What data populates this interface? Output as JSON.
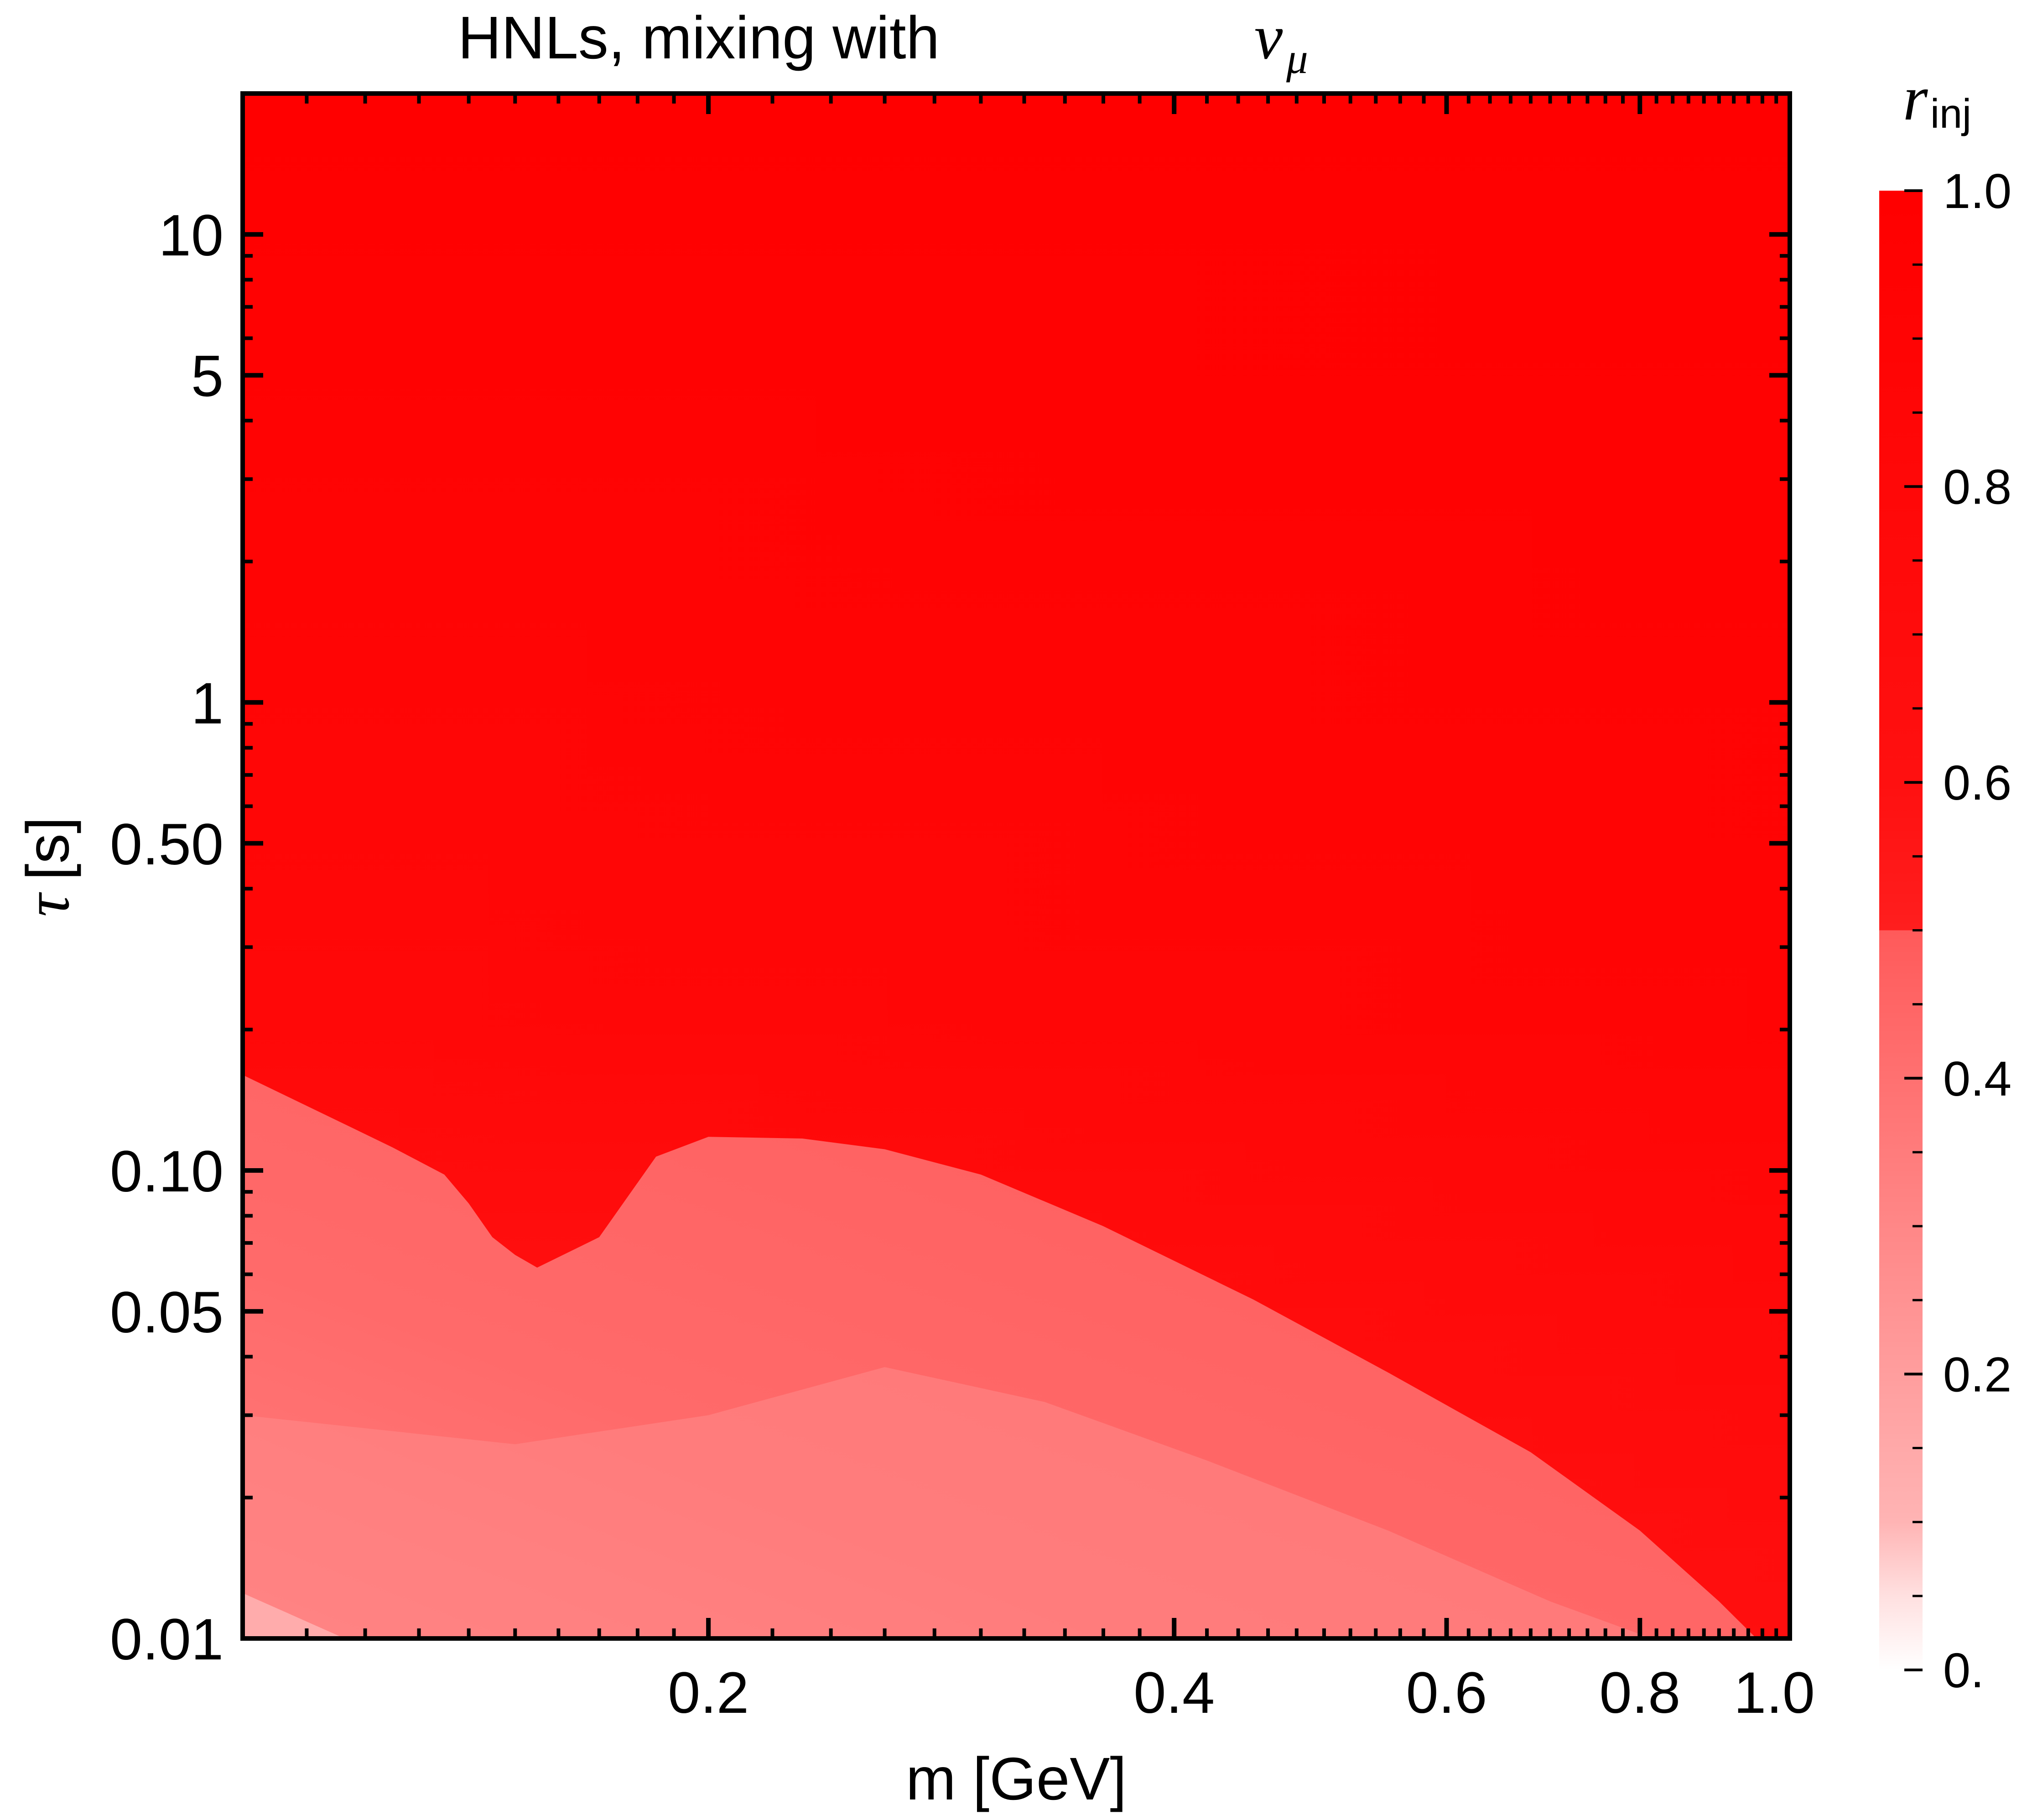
{
  "chart_data": {
    "type": "heatmap",
    "title": "HNLs, mixing with",
    "title_math": "ν",
    "title_math_sub": "μ",
    "xlabel": "m [GeV]",
    "ylabel_symbol": "τ",
    "ylabel_unit": "[s]",
    "x_scale": "log",
    "y_scale": "log",
    "xlim": [
      0.1,
      1.0
    ],
    "ylim": [
      0.01,
      20
    ],
    "x_ticks": [
      {
        "value": 0.2,
        "label": "0.2"
      },
      {
        "value": 0.4,
        "label": "0.4"
      },
      {
        "value": 0.6,
        "label": "0.6"
      },
      {
        "value": 0.8,
        "label": "0.8"
      },
      {
        "value": 1.0,
        "label": "1.0"
      }
    ],
    "y_ticks": [
      {
        "value": 0.01,
        "label": "0.01"
      },
      {
        "value": 0.05,
        "label": "0.05"
      },
      {
        "value": 0.1,
        "label": "0.10"
      },
      {
        "value": 0.5,
        "label": "0.50"
      },
      {
        "value": 1,
        "label": "1"
      },
      {
        "value": 5,
        "label": "5"
      },
      {
        "value": 10,
        "label": "10"
      }
    ],
    "colorbar": {
      "label": "r",
      "label_sub": "inj",
      "range": [
        0,
        1
      ],
      "ticks": [
        {
          "value": 0,
          "label": "0."
        },
        {
          "value": 0.2,
          "label": "0.2"
        },
        {
          "value": 0.4,
          "label": "0.4"
        },
        {
          "value": 0.6,
          "label": "0.6"
        },
        {
          "value": 0.8,
          "label": "0.8"
        },
        {
          "value": 1.0,
          "label": "1.0"
        }
      ],
      "low_color": "#ffffff",
      "high_color": "#ff0000"
    },
    "contour_r_0_5": {
      "m": [
        0.1,
        0.115,
        0.125,
        0.135,
        0.14,
        0.145,
        0.15,
        0.155,
        0.17,
        0.185,
        0.2,
        0.23,
        0.26,
        0.3,
        0.36,
        0.45,
        0.55,
        0.68,
        0.8,
        0.9,
        1.0
      ],
      "tau": [
        0.16,
        0.128,
        0.112,
        0.098,
        0.085,
        0.072,
        0.066,
        0.062,
        0.072,
        0.107,
        0.118,
        0.117,
        0.111,
        0.098,
        0.076,
        0.053,
        0.037,
        0.025,
        0.017,
        0.012,
        0.0085
      ]
    },
    "contour_r_0_3": {
      "m": [
        0.1,
        0.15,
        0.2,
        0.26,
        0.33,
        0.42,
        0.55,
        0.7,
        0.85,
        1.0
      ],
      "tau": [
        0.03,
        0.026,
        0.03,
        0.038,
        0.032,
        0.024,
        0.017,
        0.012,
        0.0095,
        0.008
      ]
    },
    "grid": false,
    "legend": "none"
  }
}
